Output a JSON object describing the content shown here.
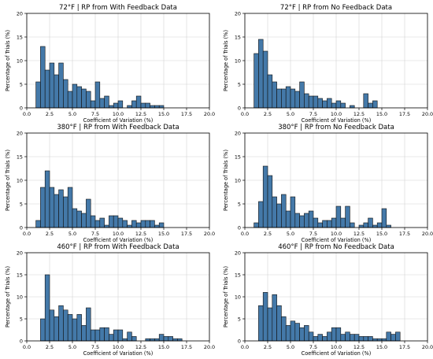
{
  "colors": {
    "bar_fill": "#4479a9",
    "bar_edge": "#111111",
    "grid": "#d2d2d2",
    "axes": "#000000"
  },
  "chart_data": [
    {
      "type": "bar",
      "title": "72°F | RP from With Feedback Data",
      "xlabel": "Coefficient of Variation (%)",
      "ylabel": "Percentage of Trials (%)",
      "xlim": [
        0,
        20
      ],
      "ylim": [
        0,
        20
      ],
      "xticks": [
        "0.0",
        "2.5",
        "5.0",
        "7.5",
        "10.0",
        "12.5",
        "15.0",
        "17.5",
        "20.0"
      ],
      "yticks": [
        "0",
        "5",
        "10",
        "15",
        "20"
      ],
      "grid": true,
      "bin_width": 0.5,
      "bins": [
        {
          "x": 1.0,
          "y": 5.5
        },
        {
          "x": 1.5,
          "y": 13.0
        },
        {
          "x": 2.0,
          "y": 8.0
        },
        {
          "x": 2.5,
          "y": 9.5
        },
        {
          "x": 3.0,
          "y": 7.0
        },
        {
          "x": 3.5,
          "y": 9.5
        },
        {
          "x": 4.0,
          "y": 6.0
        },
        {
          "x": 4.5,
          "y": 3.5
        },
        {
          "x": 5.0,
          "y": 5.0
        },
        {
          "x": 5.5,
          "y": 4.5
        },
        {
          "x": 6.0,
          "y": 4.0
        },
        {
          "x": 6.5,
          "y": 3.5
        },
        {
          "x": 7.0,
          "y": 1.5
        },
        {
          "x": 7.5,
          "y": 5.5
        },
        {
          "x": 8.0,
          "y": 2.0
        },
        {
          "x": 8.5,
          "y": 2.5
        },
        {
          "x": 9.0,
          "y": 0.5
        },
        {
          "x": 9.5,
          "y": 1.0
        },
        {
          "x": 10.0,
          "y": 1.5
        },
        {
          "x": 11.0,
          "y": 0.5
        },
        {
          "x": 11.5,
          "y": 1.5
        },
        {
          "x": 12.0,
          "y": 2.5
        },
        {
          "x": 12.5,
          "y": 1.0
        },
        {
          "x": 13.0,
          "y": 1.0
        },
        {
          "x": 13.5,
          "y": 0.5
        },
        {
          "x": 14.0,
          "y": 0.5
        },
        {
          "x": 14.5,
          "y": 0.5
        }
      ]
    },
    {
      "type": "bar",
      "title": "72°F | RP from No Feedback Data",
      "xlabel": "Coefficient of Variation (%)",
      "ylabel": "Percentage of Trials (%)",
      "xlim": [
        0,
        20
      ],
      "ylim": [
        0,
        20
      ],
      "xticks": [
        "0.0",
        "2.5",
        "5.0",
        "7.5",
        "10.0",
        "12.5",
        "15.0",
        "17.5",
        "20.0"
      ],
      "yticks": [
        "0",
        "5",
        "10",
        "15",
        "20"
      ],
      "grid": true,
      "bin_width": 0.5,
      "bins": [
        {
          "x": 1.0,
          "y": 11.5
        },
        {
          "x": 1.5,
          "y": 14.5
        },
        {
          "x": 2.0,
          "y": 12.0
        },
        {
          "x": 2.5,
          "y": 7.0
        },
        {
          "x": 3.0,
          "y": 5.5
        },
        {
          "x": 3.5,
          "y": 4.0
        },
        {
          "x": 4.0,
          "y": 4.0
        },
        {
          "x": 4.5,
          "y": 4.5
        },
        {
          "x": 5.0,
          "y": 4.0
        },
        {
          "x": 5.5,
          "y": 3.5
        },
        {
          "x": 6.0,
          "y": 5.5
        },
        {
          "x": 6.5,
          "y": 3.0
        },
        {
          "x": 7.0,
          "y": 2.5
        },
        {
          "x": 7.5,
          "y": 2.5
        },
        {
          "x": 8.0,
          "y": 2.0
        },
        {
          "x": 8.5,
          "y": 1.5
        },
        {
          "x": 9.0,
          "y": 2.0
        },
        {
          "x": 9.5,
          "y": 1.0
        },
        {
          "x": 10.0,
          "y": 1.5
        },
        {
          "x": 10.5,
          "y": 1.0
        },
        {
          "x": 11.5,
          "y": 0.5
        },
        {
          "x": 13.0,
          "y": 3.0
        },
        {
          "x": 13.5,
          "y": 1.0
        },
        {
          "x": 14.0,
          "y": 1.5
        }
      ]
    },
    {
      "type": "bar",
      "title": "380°F | RP from With Feedback Data",
      "xlabel": "Coefficient of Variation (%)",
      "ylabel": "Percentage of Trials (%)",
      "xlim": [
        0,
        20
      ],
      "ylim": [
        0,
        20
      ],
      "xticks": [
        "0.0",
        "2.5",
        "5.0",
        "7.5",
        "10.0",
        "12.5",
        "15.0",
        "17.5",
        "20.0"
      ],
      "yticks": [
        "0",
        "5",
        "10",
        "15",
        "20"
      ],
      "grid": true,
      "bin_width": 0.5,
      "bins": [
        {
          "x": 1.0,
          "y": 1.5
        },
        {
          "x": 1.5,
          "y": 8.5
        },
        {
          "x": 2.0,
          "y": 12.0
        },
        {
          "x": 2.5,
          "y": 8.5
        },
        {
          "x": 3.0,
          "y": 7.0
        },
        {
          "x": 3.5,
          "y": 8.0
        },
        {
          "x": 4.0,
          "y": 6.5
        },
        {
          "x": 4.5,
          "y": 8.5
        },
        {
          "x": 5.0,
          "y": 4.0
        },
        {
          "x": 5.5,
          "y": 3.5
        },
        {
          "x": 6.0,
          "y": 3.0
        },
        {
          "x": 6.5,
          "y": 6.0
        },
        {
          "x": 7.0,
          "y": 2.5
        },
        {
          "x": 7.5,
          "y": 1.5
        },
        {
          "x": 8.0,
          "y": 2.0
        },
        {
          "x": 8.5,
          "y": 0.5
        },
        {
          "x": 9.0,
          "y": 2.5
        },
        {
          "x": 9.5,
          "y": 2.5
        },
        {
          "x": 10.0,
          "y": 2.0
        },
        {
          "x": 10.5,
          "y": 1.5
        },
        {
          "x": 11.0,
          "y": 0.5
        },
        {
          "x": 11.5,
          "y": 1.5
        },
        {
          "x": 12.0,
          "y": 1.0
        },
        {
          "x": 12.5,
          "y": 1.5
        },
        {
          "x": 13.0,
          "y": 1.5
        },
        {
          "x": 13.5,
          "y": 1.5
        },
        {
          "x": 14.0,
          "y": 0.5
        },
        {
          "x": 14.5,
          "y": 1.0
        }
      ]
    },
    {
      "type": "bar",
      "title": "380°F | RP from No Feedback Data",
      "xlabel": "Coefficient of Variation (%)",
      "ylabel": "Percentage of Trials (%)",
      "xlim": [
        0,
        20
      ],
      "ylim": [
        0,
        20
      ],
      "xticks": [
        "0.0",
        "2.5",
        "5.0",
        "7.5",
        "10.0",
        "12.5",
        "15.0",
        "17.5",
        "20.0"
      ],
      "yticks": [
        "0",
        "5",
        "10",
        "15",
        "20"
      ],
      "grid": true,
      "bin_width": 0.5,
      "bins": [
        {
          "x": 1.0,
          "y": 1.0
        },
        {
          "x": 1.5,
          "y": 5.5
        },
        {
          "x": 2.0,
          "y": 13.0
        },
        {
          "x": 2.5,
          "y": 11.0
        },
        {
          "x": 3.0,
          "y": 6.5
        },
        {
          "x": 3.5,
          "y": 5.0
        },
        {
          "x": 4.0,
          "y": 7.0
        },
        {
          "x": 4.5,
          "y": 3.5
        },
        {
          "x": 5.0,
          "y": 6.5
        },
        {
          "x": 5.5,
          "y": 3.0
        },
        {
          "x": 6.0,
          "y": 2.5
        },
        {
          "x": 6.5,
          "y": 3.0
        },
        {
          "x": 7.0,
          "y": 3.5
        },
        {
          "x": 7.5,
          "y": 2.0
        },
        {
          "x": 8.0,
          "y": 1.0
        },
        {
          "x": 8.5,
          "y": 1.5
        },
        {
          "x": 9.0,
          "y": 1.5
        },
        {
          "x": 9.5,
          "y": 2.0
        },
        {
          "x": 10.0,
          "y": 4.5
        },
        {
          "x": 10.5,
          "y": 2.0
        },
        {
          "x": 11.0,
          "y": 4.5
        },
        {
          "x": 11.5,
          "y": 1.0
        },
        {
          "x": 12.5,
          "y": 0.5
        },
        {
          "x": 13.0,
          "y": 1.0
        },
        {
          "x": 13.5,
          "y": 2.0
        },
        {
          "x": 14.0,
          "y": 0.5
        },
        {
          "x": 14.5,
          "y": 1.0
        },
        {
          "x": 15.0,
          "y": 4.0
        },
        {
          "x": 15.5,
          "y": 0.5
        }
      ]
    },
    {
      "type": "bar",
      "title": "460°F | RP from With Feedback Data",
      "xlabel": "Coefficient of Variation (%)",
      "ylabel": "Percentage of Trials (%)",
      "xlim": [
        0,
        20
      ],
      "ylim": [
        0,
        20
      ],
      "xticks": [
        "0.0",
        "2.5",
        "5.0",
        "7.5",
        "10.0",
        "12.5",
        "15.0",
        "17.5",
        "20.0"
      ],
      "yticks": [
        "0",
        "5",
        "10",
        "15",
        "20"
      ],
      "grid": true,
      "bin_width": 0.5,
      "bins": [
        {
          "x": 1.5,
          "y": 5.0
        },
        {
          "x": 2.0,
          "y": 15.0
        },
        {
          "x": 2.5,
          "y": 7.0
        },
        {
          "x": 3.0,
          "y": 5.5
        },
        {
          "x": 3.5,
          "y": 8.0
        },
        {
          "x": 4.0,
          "y": 7.0
        },
        {
          "x": 4.5,
          "y": 6.0
        },
        {
          "x": 5.0,
          "y": 5.0
        },
        {
          "x": 5.5,
          "y": 6.0
        },
        {
          "x": 6.0,
          "y": 3.5
        },
        {
          "x": 6.5,
          "y": 7.5
        },
        {
          "x": 7.0,
          "y": 2.5
        },
        {
          "x": 7.5,
          "y": 2.5
        },
        {
          "x": 8.0,
          "y": 3.0
        },
        {
          "x": 8.5,
          "y": 3.0
        },
        {
          "x": 9.0,
          "y": 1.5
        },
        {
          "x": 9.5,
          "y": 2.5
        },
        {
          "x": 10.0,
          "y": 2.5
        },
        {
          "x": 10.5,
          "y": 0.5
        },
        {
          "x": 11.0,
          "y": 2.0
        },
        {
          "x": 11.5,
          "y": 1.0
        },
        {
          "x": 13.0,
          "y": 0.5
        },
        {
          "x": 13.5,
          "y": 0.5
        },
        {
          "x": 14.0,
          "y": 0.5
        },
        {
          "x": 14.5,
          "y": 1.5
        },
        {
          "x": 15.0,
          "y": 1.0
        },
        {
          "x": 15.5,
          "y": 1.0
        },
        {
          "x": 16.0,
          "y": 0.5
        },
        {
          "x": 16.5,
          "y": 0.5
        }
      ]
    },
    {
      "type": "bar",
      "title": "460°F | RP from No Feedback Data",
      "xlabel": "Coefficient of Variation (%)",
      "ylabel": "Percentage of Trials (%)",
      "xlim": [
        0,
        20
      ],
      "ylim": [
        0,
        20
      ],
      "xticks": [
        "0.0",
        "2.5",
        "5.0",
        "7.5",
        "10.0",
        "12.5",
        "15.0",
        "17.5",
        "20.0"
      ],
      "yticks": [
        "0",
        "5",
        "10",
        "15",
        "20"
      ],
      "grid": true,
      "bin_width": 0.5,
      "bins": [
        {
          "x": 1.5,
          "y": 8.0
        },
        {
          "x": 2.0,
          "y": 11.0
        },
        {
          "x": 2.5,
          "y": 7.5
        },
        {
          "x": 3.0,
          "y": 10.5
        },
        {
          "x": 3.5,
          "y": 8.0
        },
        {
          "x": 4.0,
          "y": 5.5
        },
        {
          "x": 4.5,
          "y": 3.5
        },
        {
          "x": 5.0,
          "y": 4.5
        },
        {
          "x": 5.5,
          "y": 4.0
        },
        {
          "x": 6.0,
          "y": 3.0
        },
        {
          "x": 6.5,
          "y": 3.5
        },
        {
          "x": 7.0,
          "y": 2.0
        },
        {
          "x": 7.5,
          "y": 1.0
        },
        {
          "x": 8.0,
          "y": 1.5
        },
        {
          "x": 8.5,
          "y": 1.0
        },
        {
          "x": 9.0,
          "y": 2.0
        },
        {
          "x": 9.5,
          "y": 3.0
        },
        {
          "x": 10.0,
          "y": 3.0
        },
        {
          "x": 10.5,
          "y": 1.5
        },
        {
          "x": 11.0,
          "y": 2.0
        },
        {
          "x": 11.5,
          "y": 1.5
        },
        {
          "x": 12.0,
          "y": 1.5
        },
        {
          "x": 12.5,
          "y": 1.0
        },
        {
          "x": 13.0,
          "y": 1.0
        },
        {
          "x": 13.5,
          "y": 1.0
        },
        {
          "x": 14.0,
          "y": 0.5
        },
        {
          "x": 14.5,
          "y": 0.5
        },
        {
          "x": 15.0,
          "y": 0.5
        },
        {
          "x": 15.5,
          "y": 2.0
        },
        {
          "x": 16.0,
          "y": 1.5
        },
        {
          "x": 16.5,
          "y": 2.0
        }
      ]
    }
  ]
}
